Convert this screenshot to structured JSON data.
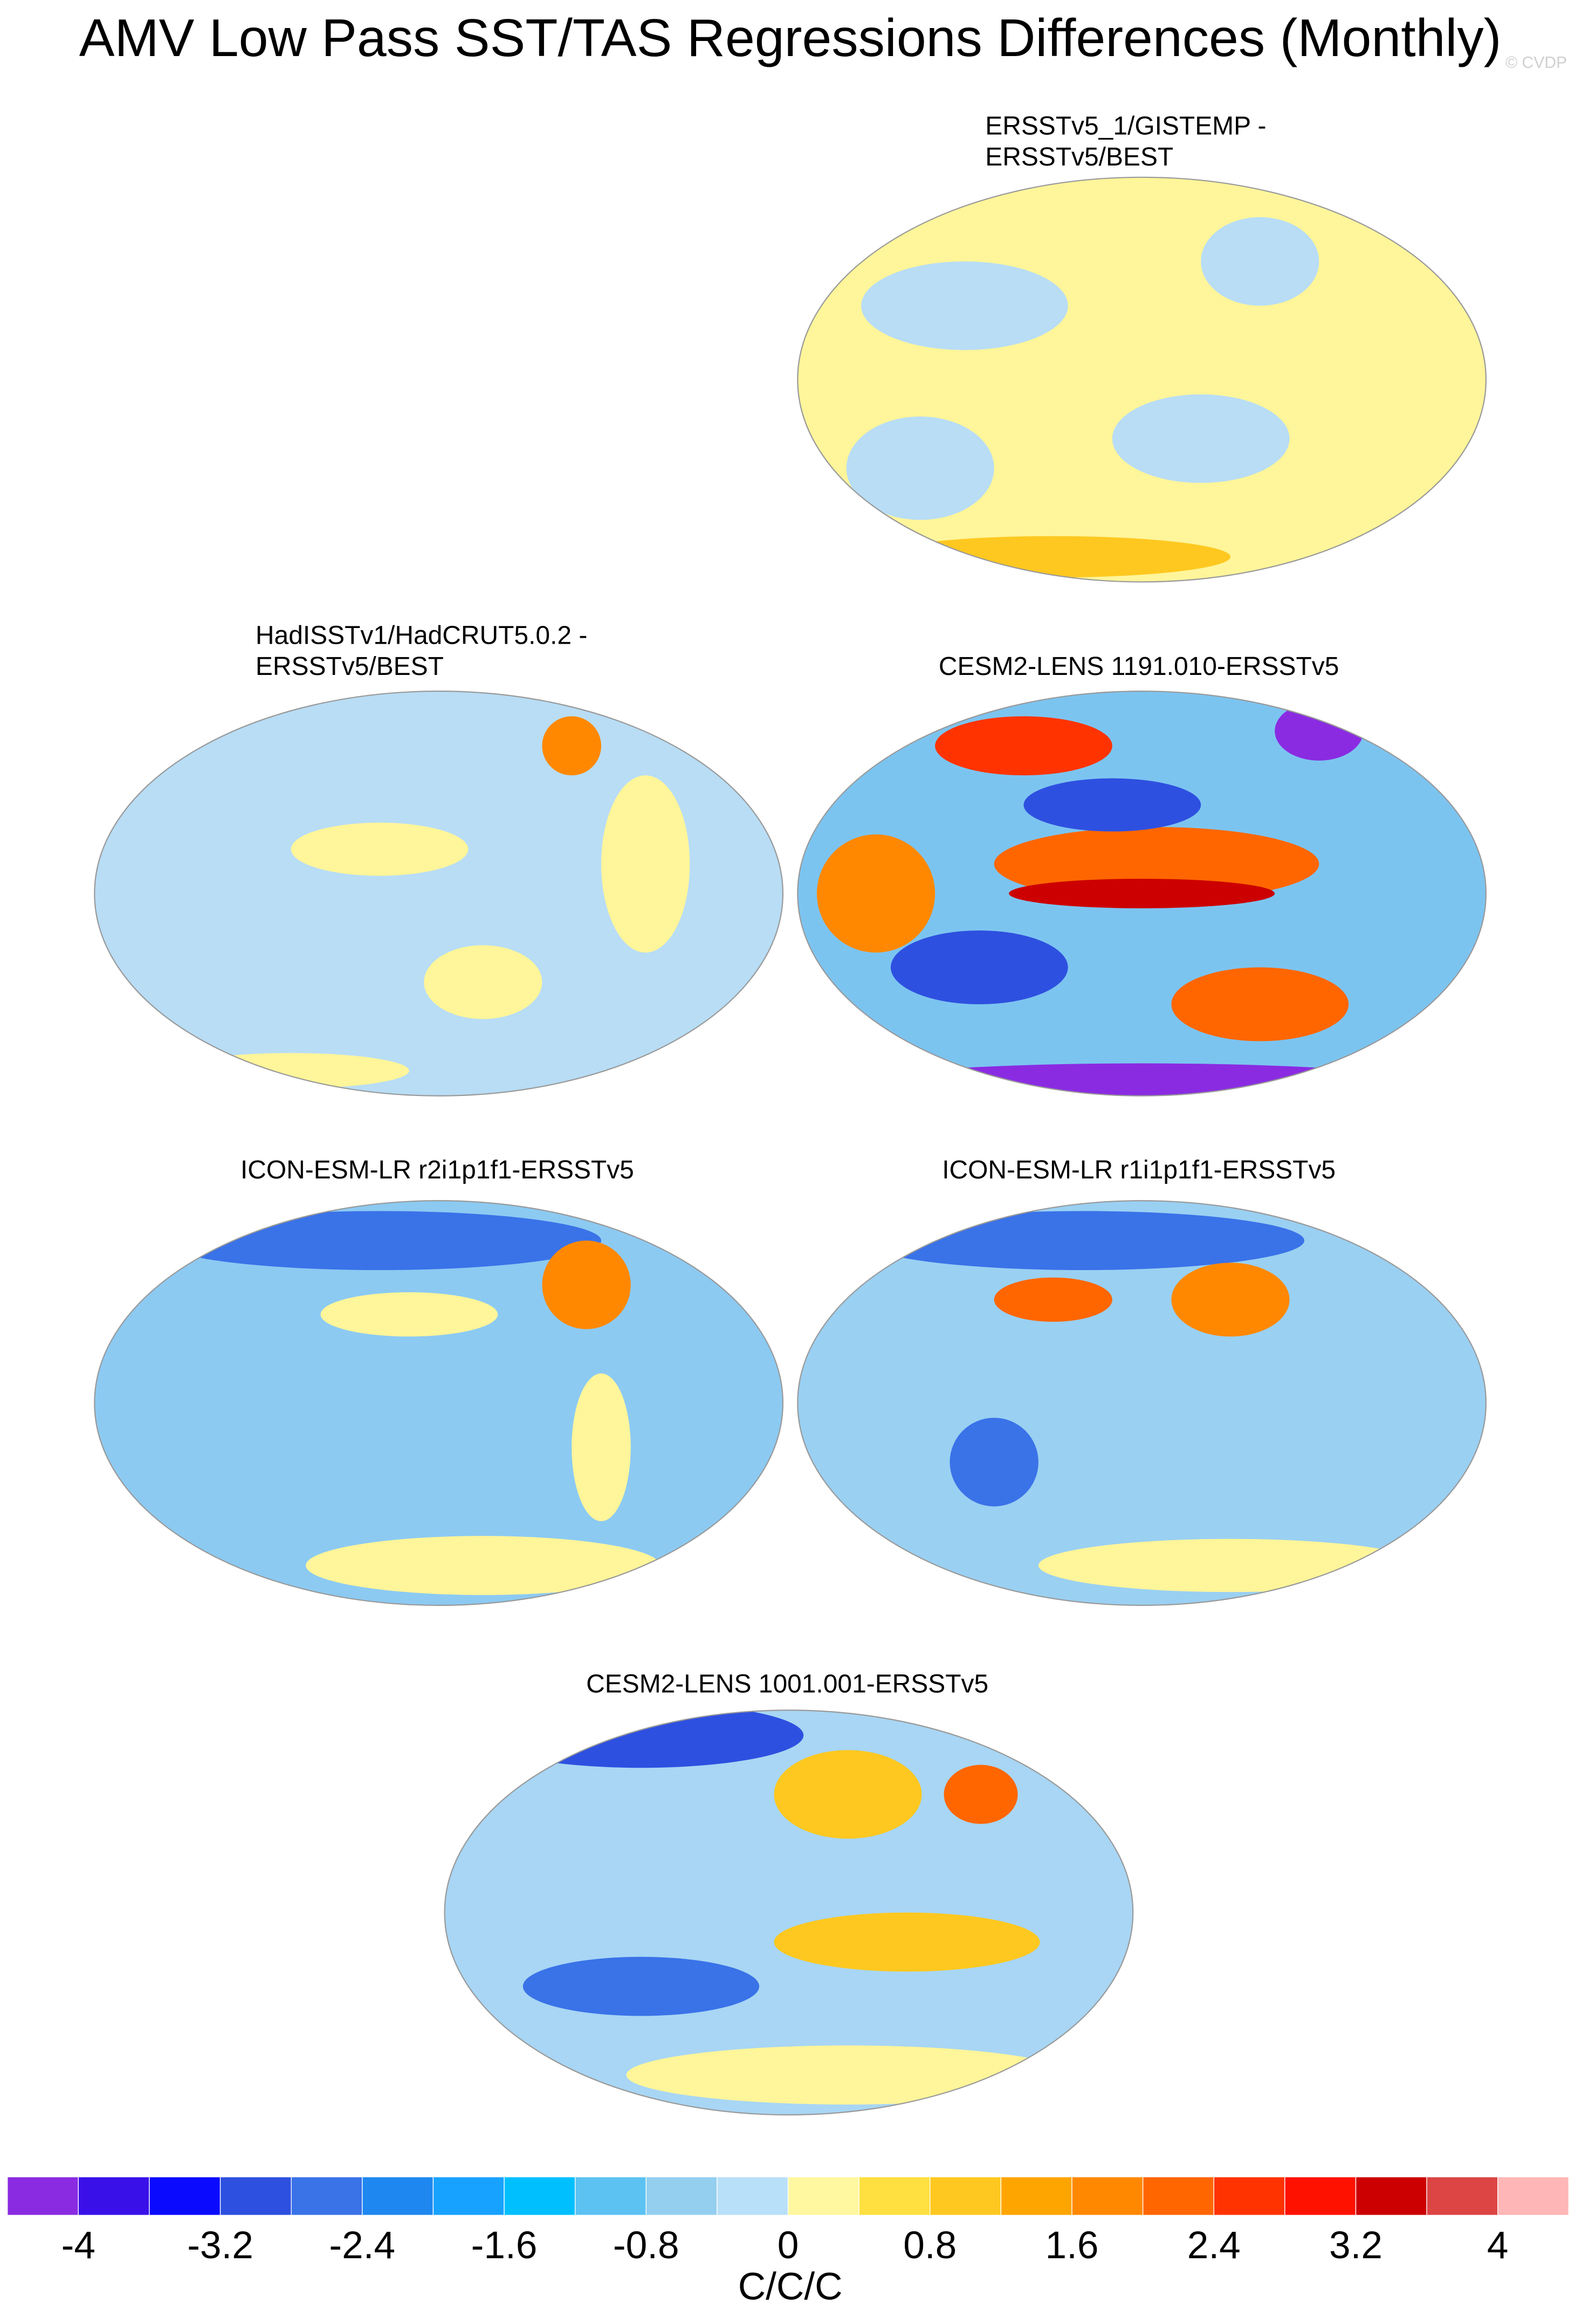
{
  "title": "AMV Low Pass SST/TAS Regressions Differences (Monthly)",
  "watermark": "© CVDP",
  "panels": [
    {
      "title": [
        "ERSSTv5_1/GISTEMP -",
        "ERSSTv5/BEST"
      ]
    },
    {
      "title": [
        "HadISSTv1/HadCRUT5.0.2 -",
        "ERSSTv5/BEST"
      ]
    },
    {
      "title": [
        "CESM2-LENS 1191.010-ERSSTv5"
      ]
    },
    {
      "title": [
        "ICON-ESM-LR r2i1p1f1-ERSSTv5"
      ]
    },
    {
      "title": [
        "ICON-ESM-LR r1i1p1f1-ERSSTv5"
      ]
    },
    {
      "title": [
        "CESM2-LENS 1001.001-ERSSTv5"
      ]
    }
  ],
  "colorbar": {
    "label": "C/C/C",
    "colors": [
      "#8a2be2",
      "#3a10e8",
      "#0a0aff",
      "#2e50e0",
      "#3a72e8",
      "#1e88f0",
      "#18a2ff",
      "#00bfff",
      "#5cc2f2",
      "#94cff0",
      "#b8e0f8",
      "#fff8a0",
      "#ffe040",
      "#ffc820",
      "#ffa500",
      "#ff8800",
      "#ff6600",
      "#ff3300",
      "#ff1100",
      "#cc0000",
      "#dd4444",
      "#ffb6b6"
    ],
    "ticks": [
      -4,
      -3.2,
      -2.4,
      -1.6,
      -0.8,
      0,
      0.8,
      1.6,
      2.4,
      3.2,
      4
    ]
  }
}
